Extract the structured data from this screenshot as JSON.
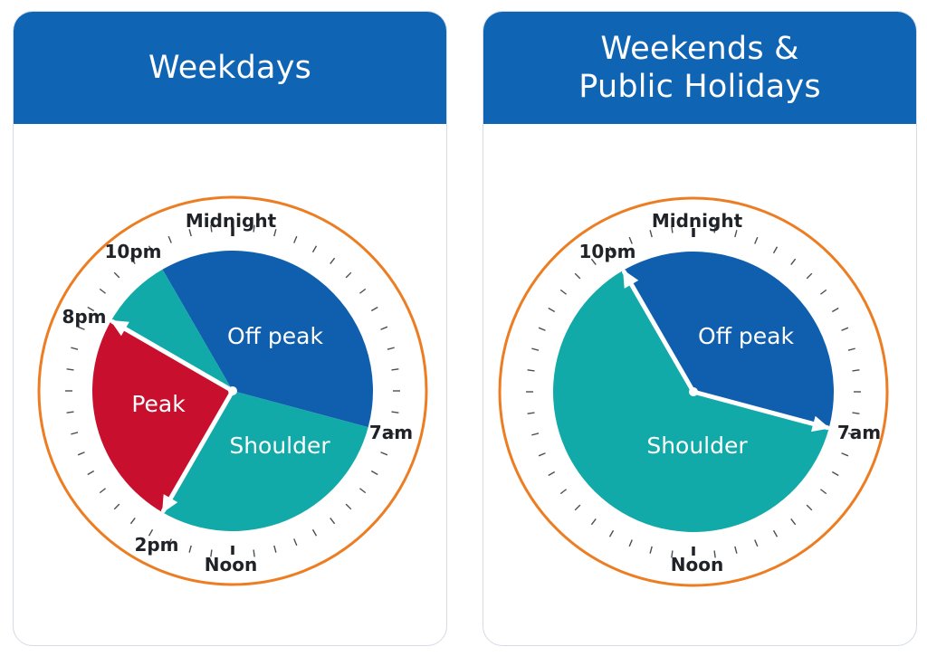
{
  "colors": {
    "header": "#0f64b3",
    "off_peak": "#105fae",
    "shoulder": "#12a9a9",
    "peak": "#c8102e",
    "ring": "#ed7d22",
    "tick": "#4a4f55",
    "hand": "#ffffff"
  },
  "clocks": [
    {
      "title_lines": [
        "Weekdays"
      ],
      "time_labels": {
        "midnight": "Midnight",
        "ten_pm": "10pm",
        "eight_pm": "8pm",
        "seven_am": "7am",
        "two_pm": "2pm",
        "noon": "Noon"
      },
      "zones": [
        {
          "name": "Off peak",
          "from_hour": 22,
          "to_hour": 7,
          "color_key": "off_peak"
        },
        {
          "name": "Shoulder",
          "from_hour": 7,
          "to_hour": 14,
          "color_key": "shoulder"
        },
        {
          "name": "Peak",
          "from_hour": 14,
          "to_hour": 20,
          "color_key": "peak"
        },
        {
          "name": "",
          "from_hour": 20,
          "to_hour": 22,
          "color_key": "shoulder"
        }
      ],
      "hands_hours": [
        20,
        14
      ]
    },
    {
      "title_lines": [
        "Weekends &",
        "Public Holidays"
      ],
      "time_labels": {
        "midnight": "Midnight",
        "ten_pm": "10pm",
        "seven_am": "7am",
        "noon": "Noon"
      },
      "zones": [
        {
          "name": "Off peak",
          "from_hour": 22,
          "to_hour": 7,
          "color_key": "off_peak"
        },
        {
          "name": "Shoulder",
          "from_hour": 7,
          "to_hour": 22,
          "color_key": "shoulder"
        }
      ],
      "hands_hours": [
        22,
        7
      ]
    }
  ]
}
